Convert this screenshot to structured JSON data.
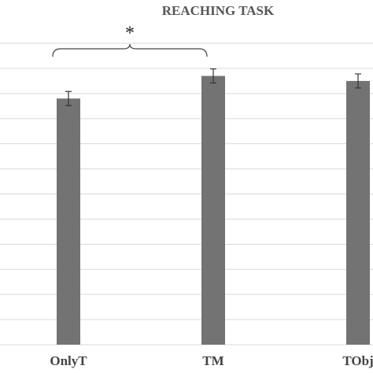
{
  "chart_data": {
    "type": "bar",
    "title": "REACHING TASK",
    "categories": [
      "OnlyT",
      "TM",
      "TObj"
    ],
    "values": [
      9.8,
      10.7,
      10.5
    ],
    "errors": [
      0.28,
      0.28,
      0.28
    ],
    "color": "#737373",
    "ylim": [
      0,
      12
    ],
    "yticks": [
      0,
      1,
      2,
      3,
      4,
      5,
      6,
      7,
      8,
      9,
      10,
      11,
      12
    ],
    "ytick_labels": false,
    "grid": true,
    "annotations": [
      {
        "text": "*",
        "from": 0,
        "to": 1
      }
    ]
  }
}
